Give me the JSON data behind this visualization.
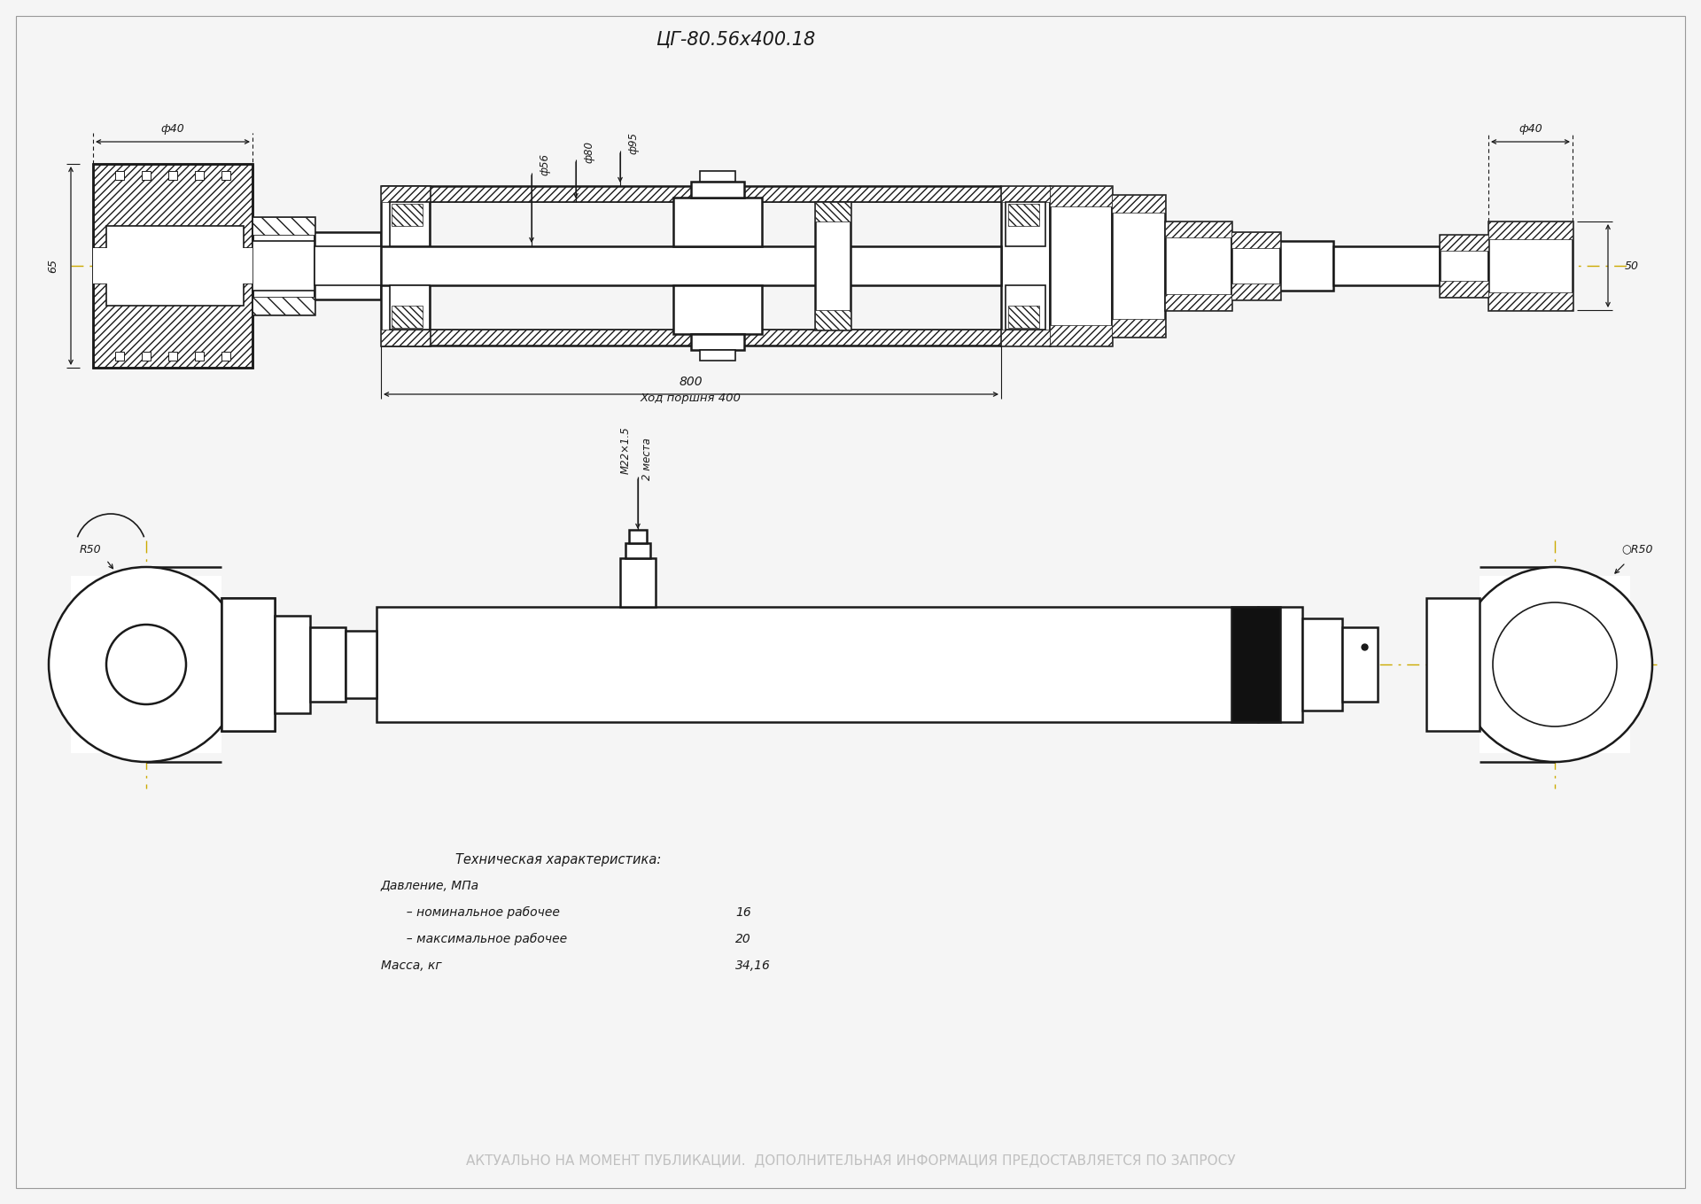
{
  "title": "ЦГ-80.56х400.18",
  "bg_color": "#f5f5f5",
  "drawing_color": "#1a1a1a",
  "yellow_line_color": "#ccaa00",
  "tech_header": "Техническая характеристика:",
  "tech_lines": [
    {
      "label": "Давление, МПа",
      "value": ""
    },
    {
      "label": "  – номинальное рабочее",
      "value": "16"
    },
    {
      "label": "  – максимальное рабочее",
      "value": "20"
    },
    {
      "label": "Масса, кг",
      "value": "34,16"
    }
  ],
  "footer_text": "АКТУАЛЬНО НА МОМЕНТ ПУБЛИКАЦИИ.  ДОПОЛНИТЕЛЬНАЯ ИНФОРМАЦИЯ ПРЕДОСТАВЛЯЕТСЯ ПО ЗАПРОСУ",
  "footer_color": "#c0c0c0",
  "dim_800": "800",
  "dim_stroke": "Ход поршня 400",
  "dim_phi56": "ф56",
  "dim_phi80": "ф80",
  "dim_phi95": "ф95",
  "dim_phi40": "ф40",
  "dim_65": "65",
  "dim_50": "50",
  "dim_R50_left": "R50",
  "dim_R50_right": "○R50",
  "dim_M22": "M22×1.5",
  "dim_2mesta": "2 места"
}
